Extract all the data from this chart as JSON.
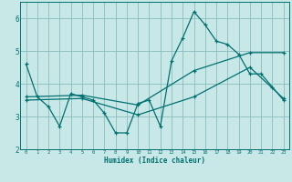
{
  "bg_color": "#c8e8e8",
  "grid_color": "#8bbcbc",
  "line_color": "#007070",
  "xlim": [
    -0.5,
    23.5
  ],
  "ylim": [
    2.0,
    6.5
  ],
  "xticks": [
    0,
    1,
    2,
    3,
    4,
    5,
    6,
    7,
    8,
    9,
    10,
    11,
    12,
    13,
    14,
    15,
    16,
    17,
    18,
    19,
    20,
    21,
    22,
    23
  ],
  "yticks": [
    2,
    3,
    4,
    5,
    6
  ],
  "xlabel": "Humidex (Indice chaleur)",
  "series1": [
    [
      0,
      4.6
    ],
    [
      1,
      3.6
    ],
    [
      2,
      3.3
    ],
    [
      3,
      2.7
    ],
    [
      4,
      3.7
    ],
    [
      5,
      3.6
    ],
    [
      6,
      3.5
    ],
    [
      7,
      3.1
    ],
    [
      8,
      2.5
    ],
    [
      9,
      2.5
    ],
    [
      10,
      3.4
    ],
    [
      11,
      3.5
    ],
    [
      12,
      2.7
    ],
    [
      13,
      4.7
    ],
    [
      14,
      5.4
    ],
    [
      15,
      6.2
    ],
    [
      16,
      5.8
    ],
    [
      17,
      5.3
    ],
    [
      18,
      5.2
    ],
    [
      19,
      4.9
    ],
    [
      20,
      4.3
    ],
    [
      21,
      4.3
    ],
    [
      22,
      3.9
    ],
    [
      23,
      3.5
    ]
  ],
  "series2": [
    [
      0,
      3.6
    ],
    [
      5,
      3.65
    ],
    [
      10,
      3.35
    ],
    [
      15,
      4.4
    ],
    [
      20,
      4.95
    ],
    [
      23,
      4.95
    ]
  ],
  "series3": [
    [
      0,
      3.5
    ],
    [
      5,
      3.55
    ],
    [
      10,
      3.05
    ],
    [
      15,
      3.6
    ],
    [
      20,
      4.5
    ],
    [
      23,
      3.55
    ]
  ]
}
